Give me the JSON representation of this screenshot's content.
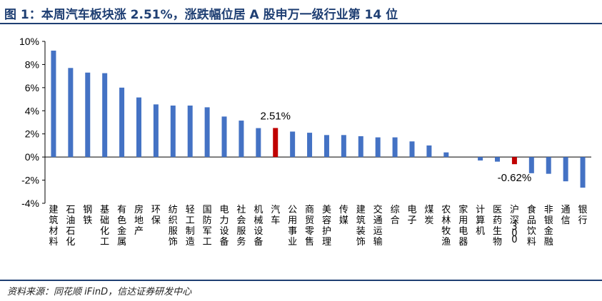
{
  "header": {
    "title": "图 1：本周汽车板块涨 2.51%，涨跌幅位居 A 股申万一级行业第 14 位"
  },
  "footer": {
    "source": "资料来源：同花顺 iFinD，信达证券研发中心"
  },
  "colors": {
    "title": "#1f3f73",
    "bar": "#4472c4",
    "highlight": "#c00000"
  },
  "chart_data": {
    "type": "bar",
    "title": "",
    "xlabel": "",
    "ylabel": "",
    "ylim": [
      -4,
      10
    ],
    "yticks": [
      "10%",
      "8%",
      "6%",
      "4%",
      "2%",
      "0%",
      "-2%",
      "-4%"
    ],
    "grid": false,
    "categories": [
      "建筑材料",
      "石油石化",
      "钢铁",
      "基础化工",
      "有色金属",
      "房地产",
      "环保",
      "纺织服饰",
      "轻工制造",
      "国防军工",
      "电力设备",
      "社会服务",
      "机械设备",
      "汽车",
      "公用事业",
      "商贸零售",
      "美容护理",
      "传媒",
      "建筑装饰",
      "交通运输",
      "综合",
      "电子",
      "煤炭",
      "农林牧渔",
      "家用电器",
      "计算机",
      "医药生物",
      "沪深300",
      "食品饮料",
      "非银金融",
      "通信",
      "银行"
    ],
    "values": [
      9.2,
      7.7,
      7.3,
      7.25,
      6.0,
      5.15,
      4.55,
      4.45,
      4.45,
      4.3,
      3.5,
      3.15,
      2.5,
      2.51,
      2.2,
      2.1,
      1.9,
      1.9,
      1.8,
      1.7,
      1.7,
      1.35,
      1.0,
      0.4,
      0.0,
      -0.3,
      -0.4,
      -0.62,
      -1.4,
      -1.45,
      -2.1,
      -2.65
    ],
    "highlighted": [
      "汽车",
      "沪深300"
    ],
    "annotations": [
      {
        "category": "汽车",
        "text": "2.51%"
      },
      {
        "category": "沪深300",
        "text": "-0.62%"
      }
    ]
  }
}
